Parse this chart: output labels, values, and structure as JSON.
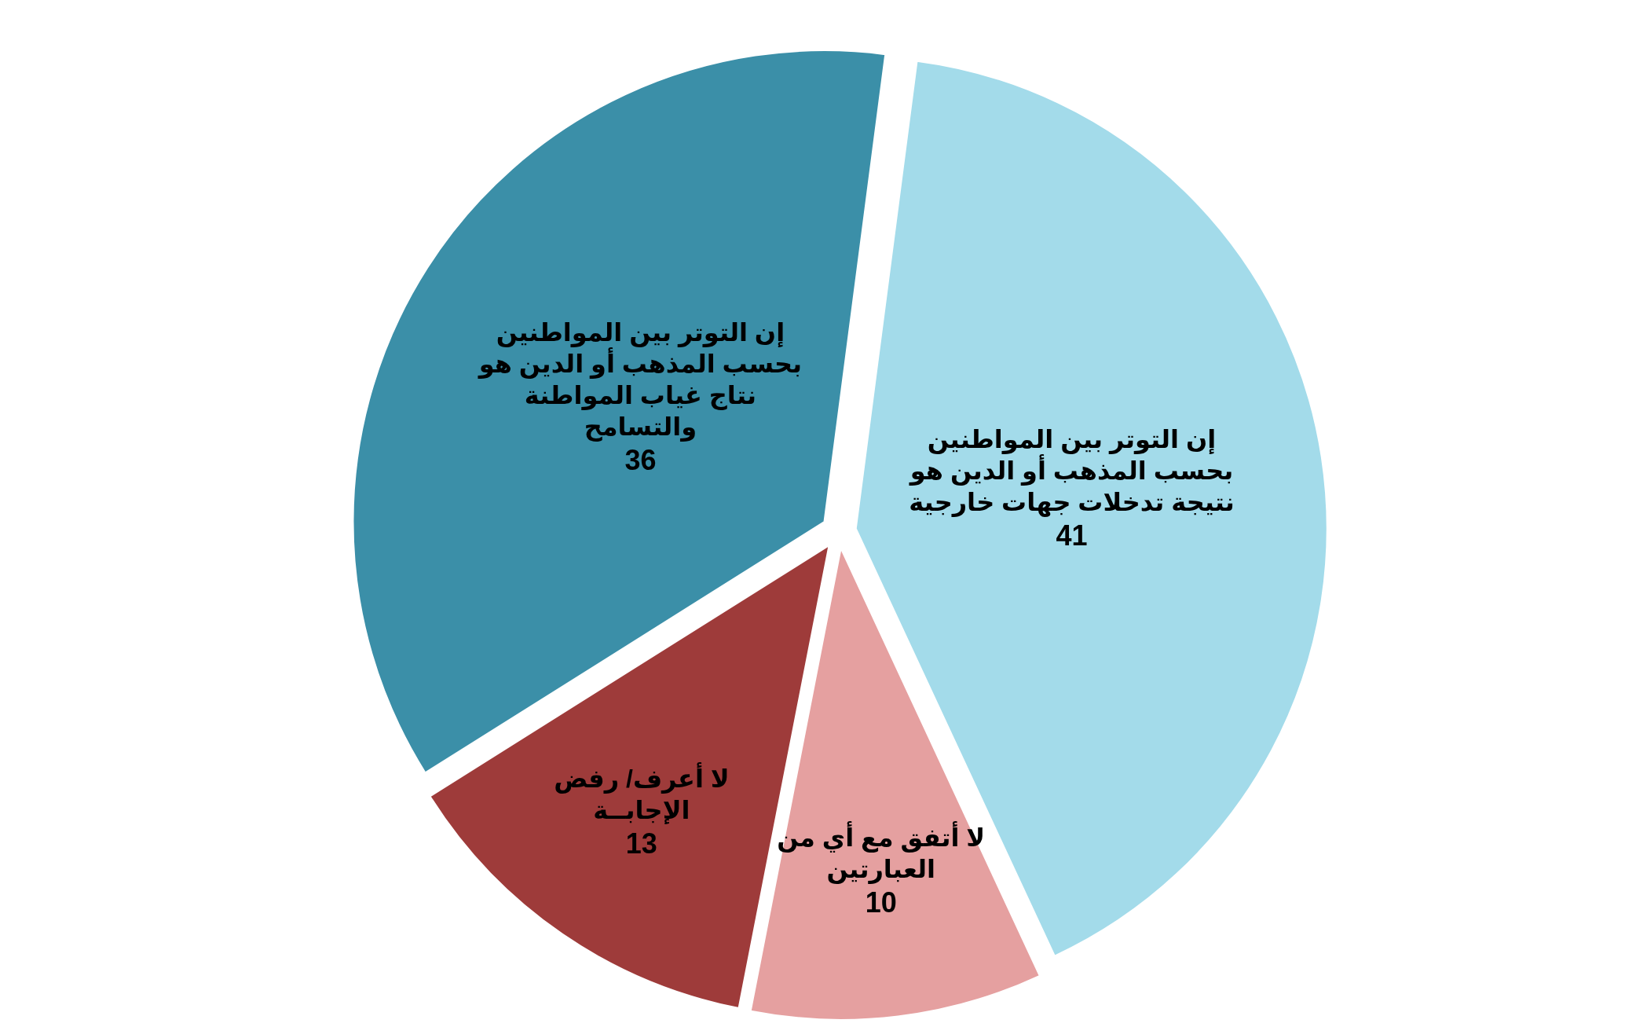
{
  "chart_data": {
    "type": "pie",
    "categories": [
      "إن التوتر بين المواطنين بحسب  المذهب أو الدين هو نتيجة تدخلات جهات خارجية",
      "لا أتفق مع أي من العبارتين",
      "لا أعرف/ رفض الإجابــة",
      "إن التوتر بين المواطنين بحسب  المذهب أو الدين هو نتاج غياب المواطنة والتسامح"
    ],
    "values": [
      41,
      10,
      13,
      36
    ],
    "colors": [
      "#a3dbea",
      "#e5a0a0",
      "#9e3b3a",
      "#3b8fa8"
    ],
    "data_labels": true
  }
}
